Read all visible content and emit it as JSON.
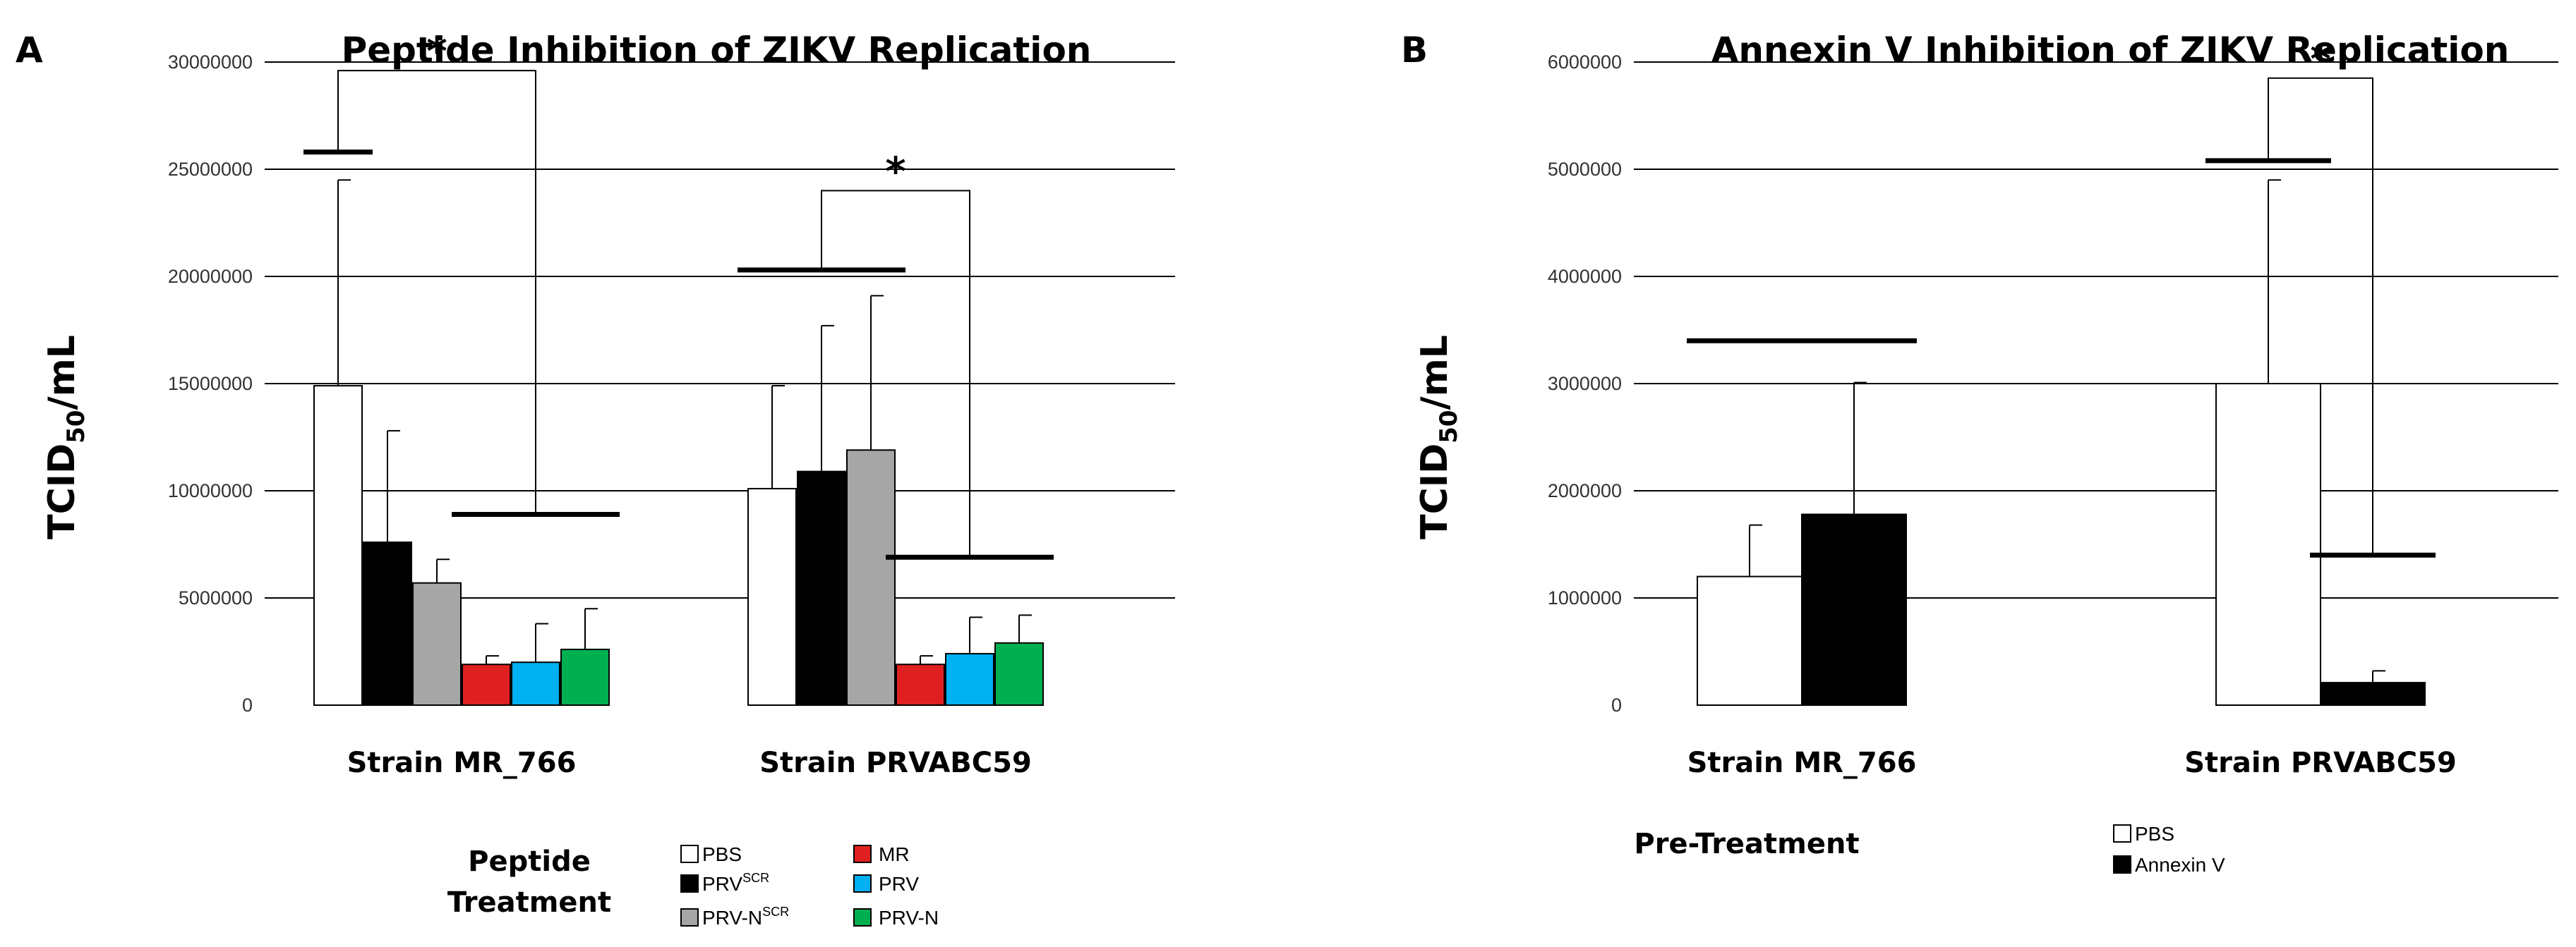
{
  "figure": {
    "panels": [
      {
        "letter": "A",
        "legend": {
          "title_lines": [
            "Peptide",
            "Treatment"
          ]
        }
      },
      {
        "letter": "B",
        "legend": {
          "title_lines": [
            "Pre-Treatment"
          ]
        }
      }
    ]
  },
  "chart_data": [
    {
      "type": "bar",
      "title": "Peptide Inhibition of ZIKV Replication",
      "ylabel_main": "TCID",
      "ylabel_sub": "50",
      "ylabel_tail": "/mL",
      "xlabel": "",
      "ylim": [
        0,
        30000000
      ],
      "yticks": [
        0,
        5000000,
        10000000,
        15000000,
        20000000,
        25000000,
        30000000
      ],
      "ytick_labels": [
        "0",
        "5000000",
        "10000000",
        "15000000",
        "20000000",
        "25000000",
        "30000000"
      ],
      "grid": true,
      "categories": [
        "Strain MR_766",
        "Strain PRVABC59"
      ],
      "series": [
        {
          "name": "PBS",
          "sup": "",
          "color": "#ffffff",
          "values": [
            14900000,
            10100000
          ],
          "errors": [
            9600000,
            4800000
          ]
        },
        {
          "name": "PRV",
          "sup": "SCR",
          "color": "#000000",
          "values": [
            7600000,
            10900000
          ],
          "errors": [
            5200000,
            6800000
          ]
        },
        {
          "name": "PRV-N",
          "sup": "SCR",
          "color": "#a6a6a6",
          "values": [
            5700000,
            11900000
          ],
          "errors": [
            1100000,
            7200000
          ]
        },
        {
          "name": "MR",
          "sup": "",
          "color": "#e02020",
          "values": [
            1900000,
            1900000
          ],
          "errors": [
            400000,
            400000
          ]
        },
        {
          "name": "PRV",
          "sup": "",
          "color": "#00b0f0",
          "values": [
            2000000,
            2400000
          ],
          "errors": [
            1800000,
            1700000
          ]
        },
        {
          "name": "PRV-N",
          "sup": "",
          "color": "#00b050",
          "values": [
            2600000,
            2900000
          ],
          "errors": [
            1900000,
            1300000
          ]
        }
      ],
      "annotations": [
        {
          "type": "group_line",
          "category": 0,
          "series_from": 0,
          "series_to": 0,
          "y": 25800000
        },
        {
          "type": "group_line",
          "category": 0,
          "series_from": 3,
          "series_to": 5,
          "y": 8900000
        },
        {
          "type": "group_line",
          "category": 1,
          "series_from": 0,
          "series_to": 2,
          "y": 20300000
        },
        {
          "type": "group_line",
          "category": 1,
          "series_from": 3,
          "series_to": 5,
          "y": 6900000
        },
        {
          "type": "bracket",
          "category": 0,
          "y_top": 29600000,
          "y_left": 25800000,
          "y_right": 8900000,
          "label": "*"
        },
        {
          "type": "bracket",
          "category": 1,
          "y_top": 24000000,
          "y_left": 20300000,
          "y_right": 6900000,
          "label": "*"
        }
      ],
      "legend": {
        "position": "bottom"
      }
    },
    {
      "type": "bar",
      "title": "Annexin V Inhibition of ZIKV Replication",
      "ylabel_main": "TCID",
      "ylabel_sub": "50",
      "ylabel_tail": "/mL",
      "xlabel": "",
      "ylim": [
        0,
        6000000
      ],
      "yticks": [
        0,
        1000000,
        2000000,
        3000000,
        4000000,
        5000000,
        6000000
      ],
      "ytick_labels": [
        "0",
        "1000000",
        "2000000",
        "3000000",
        "4000000",
        "5000000",
        "6000000"
      ],
      "grid": true,
      "categories": [
        "Strain MR_766",
        "Strain PRVABC59"
      ],
      "series": [
        {
          "name": "PBS",
          "sup": "",
          "color": "#ffffff",
          "values": [
            1200000,
            3000000
          ],
          "errors": [
            480000,
            1900000
          ]
        },
        {
          "name": "Annexin V",
          "sup": "",
          "color": "#000000",
          "values": [
            1780000,
            210000
          ],
          "errors": [
            1230000,
            110000
          ]
        }
      ],
      "annotations": [
        {
          "type": "group_line",
          "category": 0,
          "series_from": 0,
          "series_to": 1,
          "y": 3400000
        },
        {
          "type": "group_line",
          "category": 1,
          "series_from": 0,
          "series_to": 0,
          "y": 5080000
        },
        {
          "type": "group_line",
          "category": 1,
          "series_from": 1,
          "series_to": 1,
          "y": 1400000
        },
        {
          "type": "bracket",
          "category": 1,
          "y_top": 5850000,
          "y_left": 5080000,
          "y_right": 1400000,
          "label": "*"
        }
      ],
      "legend": {
        "position": "bottom"
      }
    }
  ]
}
